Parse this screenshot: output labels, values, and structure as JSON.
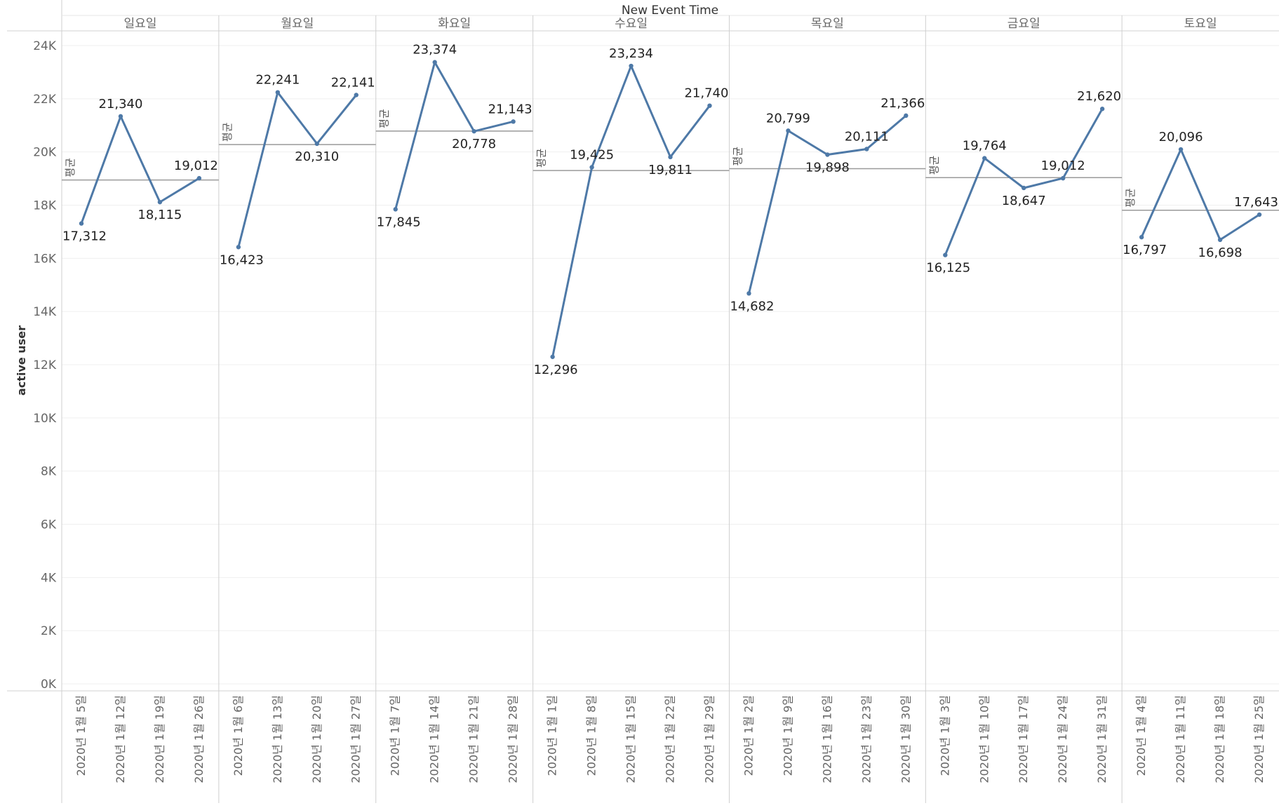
{
  "chart_data": {
    "type": "line",
    "title": "New Event Time",
    "ylabel": "active user",
    "ylim": [
      0,
      24000
    ],
    "yticks": [
      "0K",
      "2K",
      "4K",
      "6K",
      "8K",
      "10K",
      "12K",
      "14K",
      "16K",
      "18K",
      "20K",
      "22K",
      "24K"
    ],
    "grid": true,
    "line_color": "#4e79a7",
    "average_label": "평균",
    "panels": [
      {
        "name": "일요일",
        "dates": [
          "2020년 1월 5일",
          "2020년 1월 12일",
          "2020년 1월 19일",
          "2020년 1월 26일"
        ],
        "values": [
          17312,
          21340,
          18115,
          19012
        ],
        "labels": [
          "17,312",
          "21,340",
          "18,115",
          "19,012"
        ],
        "average": 18945
      },
      {
        "name": "월요일",
        "dates": [
          "2020년 1월 6일",
          "2020년 1월 13일",
          "2020년 1월 20일",
          "2020년 1월 27일"
        ],
        "values": [
          16423,
          22241,
          20310,
          22141
        ],
        "labels": [
          "16,423",
          "22,241",
          "20,310",
          "22,141"
        ],
        "average": 20279
      },
      {
        "name": "화요일",
        "dates": [
          "2020년 1월 7일",
          "2020년 1월 14일",
          "2020년 1월 21일",
          "2020년 1월 28일"
        ],
        "values": [
          17845,
          23374,
          20778,
          21143
        ],
        "labels": [
          "17,845",
          "23,374",
          "20,778",
          "21,143"
        ],
        "average": 20785
      },
      {
        "name": "수요일",
        "dates": [
          "2020년 1월 1일",
          "2020년 1월 8일",
          "2020년 1월 15일",
          "2020년 1월 22일",
          "2020년 1월 29일"
        ],
        "values": [
          12296,
          19425,
          23234,
          19811,
          21740
        ],
        "labels": [
          "12,296",
          "19,425",
          "23,234",
          "19,811",
          "21,740"
        ],
        "average": 19301
      },
      {
        "name": "목요일",
        "dates": [
          "2020년 1월 2일",
          "2020년 1월 9일",
          "2020년 1월 16일",
          "2020년 1월 23일",
          "2020년 1월 30일"
        ],
        "values": [
          14682,
          20799,
          19898,
          20111,
          21366
        ],
        "labels": [
          "14,682",
          "20,799",
          "19,898",
          "20,111",
          "21,366"
        ],
        "average": 19371
      },
      {
        "name": "금요일",
        "dates": [
          "2020년 1월 3일",
          "2020년 1월 10일",
          "2020년 1월 17일",
          "2020년 1월 24일",
          "2020년 1월 31일"
        ],
        "values": [
          16125,
          19764,
          18647,
          19012,
          21620
        ],
        "labels": [
          "16,125",
          "19,764",
          "18,647",
          "19,012",
          "21,620"
        ],
        "average": 19034
      },
      {
        "name": "토요일",
        "dates": [
          "2020년 1월 4일",
          "2020년 1월 11일",
          "2020년 1월 18일",
          "2020년 1월 25일"
        ],
        "values": [
          16797,
          20096,
          16698,
          17643
        ],
        "labels": [
          "16,797",
          "20,096",
          "16,698",
          "17,643"
        ],
        "average": 17809
      }
    ]
  }
}
